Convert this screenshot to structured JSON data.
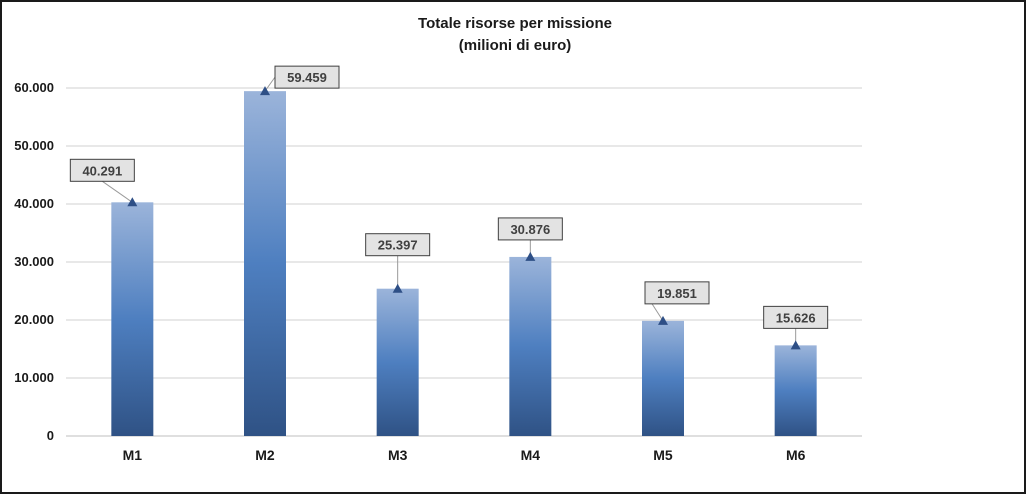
{
  "chart_data": {
    "type": "bar",
    "title": "Totale risorse per missione",
    "subtitle": "(milioni di euro)",
    "categories": [
      "M1",
      "M2",
      "M3",
      "M4",
      "M5",
      "M6"
    ],
    "values": [
      40291,
      59459,
      25397,
      30876,
      19851,
      15626
    ],
    "data_labels": [
      "40.291",
      "59.459",
      "25.397",
      "30.876",
      "19.851",
      "15.626"
    ],
    "y_ticks": [
      0,
      10000,
      20000,
      30000,
      40000,
      50000,
      60000
    ],
    "y_tick_labels": [
      "0",
      "10.000",
      "20.000",
      "30.000",
      "40.000",
      "50.000",
      "60.000"
    ],
    "ylim": [
      0,
      60000
    ],
    "grid": true,
    "legend": "none",
    "colors": {
      "bar_top": "#9bb4da",
      "bar_mid": "#4e7fc0",
      "bar_bottom": "#2f5285",
      "marker": "#2e4f86",
      "label_box": "#e3e3e3"
    }
  }
}
